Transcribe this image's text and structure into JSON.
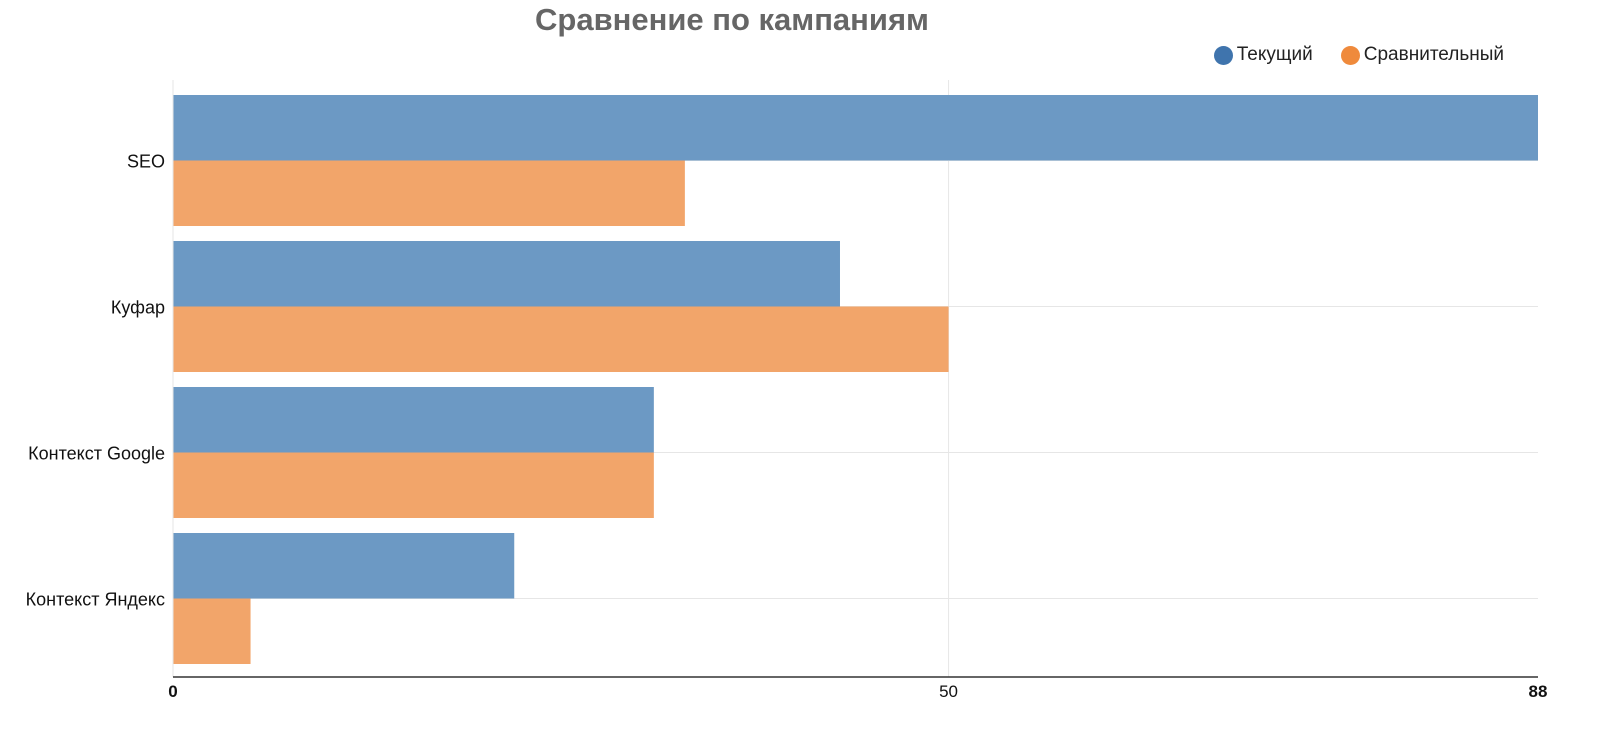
{
  "chart_data": {
    "type": "bar",
    "orientation": "horizontal",
    "title": "Сравнение по кампаниям",
    "categories": [
      "SEO",
      "Куфар",
      "Контекст Google",
      "Контекст Яндекс"
    ],
    "series": [
      {
        "name": "Текущий",
        "values": [
          88,
          43,
          31,
          22
        ]
      },
      {
        "name": "Сравнительный",
        "values": [
          33,
          50,
          31,
          5
        ]
      }
    ],
    "xlim": [
      0,
      88
    ],
    "x_ticks": [
      "0",
      "50",
      "88"
    ],
    "grid": true,
    "legend_position": "top-right",
    "colors": {
      "current": "#6c99c4",
      "compare": "#f2a56a",
      "legend_current": "#3f74ad",
      "legend_compare": "#ef8a3c",
      "grid": "#e6e6e6",
      "axis": "#333333"
    }
  }
}
